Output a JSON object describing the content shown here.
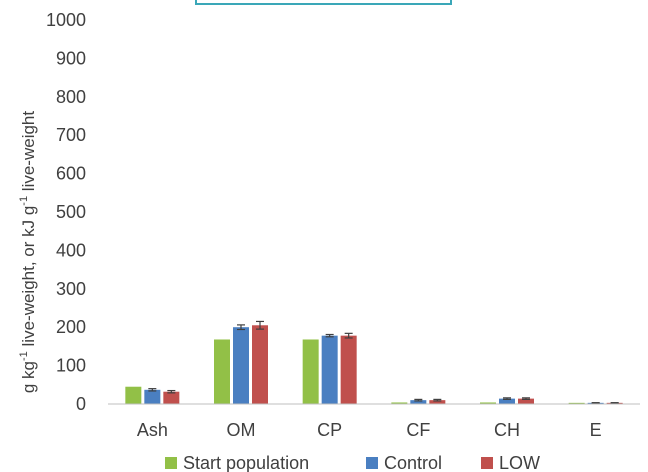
{
  "chart_data": {
    "type": "bar",
    "categories": [
      "Ash",
      "OM",
      "CP",
      "CF",
      "CH",
      "E"
    ],
    "series": [
      {
        "name": "Start population",
        "color": "#92c047",
        "values": [
          45,
          168,
          168,
          4,
          4,
          3
        ],
        "errors": [
          0,
          0,
          0,
          0,
          0,
          0
        ]
      },
      {
        "name": "Control",
        "color": "#4a7fc1",
        "values": [
          37,
          200,
          178,
          10,
          14,
          3
        ],
        "errors": [
          3,
          6,
          3,
          2,
          2,
          0.5
        ]
      },
      {
        "name": "LOW",
        "color": "#c0504d",
        "values": [
          32,
          205,
          178,
          10,
          14,
          3
        ],
        "errors": [
          3,
          10,
          6,
          2,
          2,
          0.5
        ]
      }
    ],
    "yticks": [
      0,
      100,
      200,
      300,
      400,
      500,
      600,
      700,
      800,
      900,
      1000
    ],
    "ylim": [
      0,
      1000
    ],
    "ylabel": {
      "g": "g kg",
      "e1": "-1",
      "mid": " live-weight, or kJ g",
      "e2": "-1",
      "end": "  live-weight"
    },
    "legend_position": "bottom",
    "grid": false
  }
}
